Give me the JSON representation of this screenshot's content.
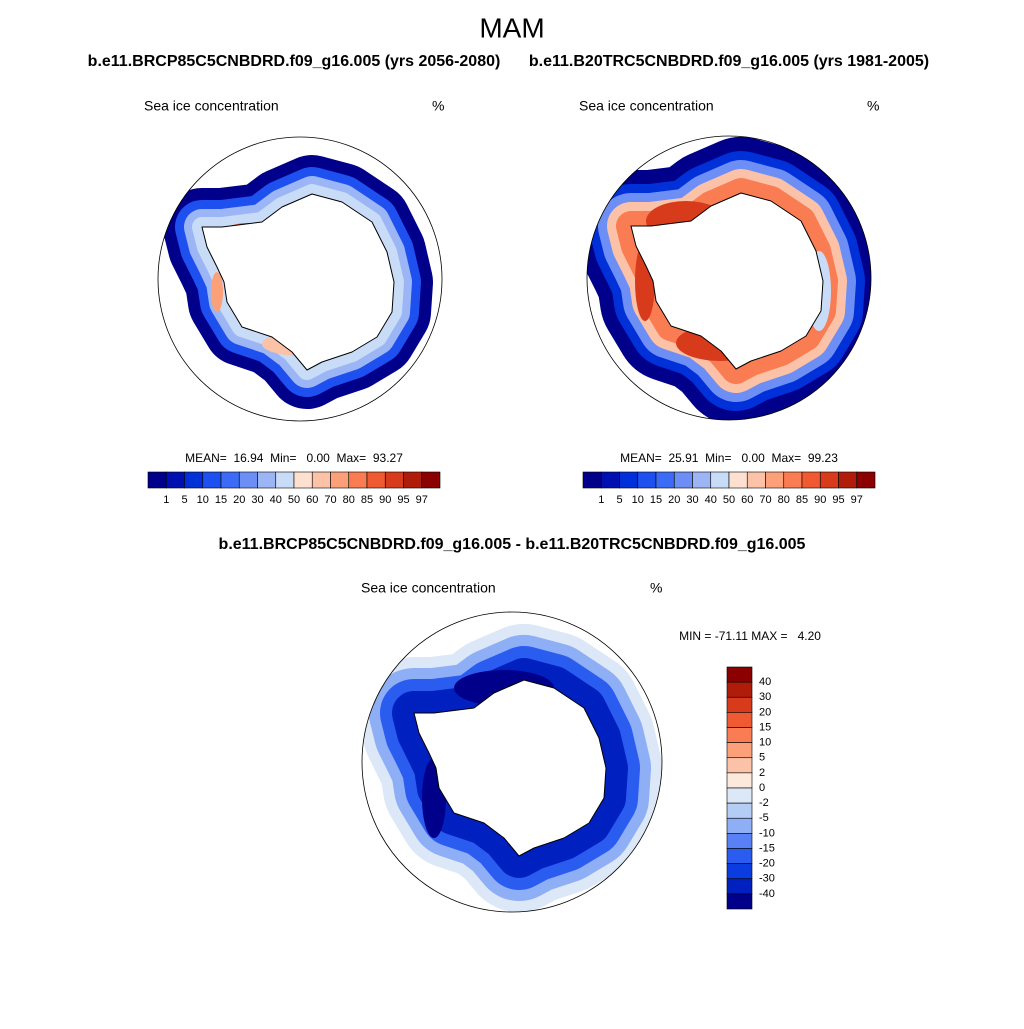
{
  "title": "MAM",
  "panels": [
    {
      "subtitle": "b.e11.BRCP85C5CNBDRD.f09_g16.005 (yrs 2056-2080)",
      "label_left": "Sea ice concentration",
      "label_right": "%",
      "stats": "MEAN=  16.94  Min=   0.00  Max=  93.27"
    },
    {
      "subtitle": "b.e11.B20TRC5CNBDRD.f09_g16.005 (yrs 1981-2005)",
      "label_left": "Sea ice concentration",
      "label_right": "%",
      "stats": "MEAN=  25.91  Min=   0.00  Max=  99.23"
    },
    {
      "subtitle": "b.e11.BRCP85C5CNBDRD.f09_g16.005 - b.e11.B20TRC5CNBDRD.f09_g16.005",
      "label_left": "Sea ice concentration",
      "label_right": "%",
      "stats": "MIN = -71.11 MAX =   4.20"
    }
  ],
  "colorbars": [
    {
      "colors": [
        "#00008b",
        "#0010b0",
        "#0030d8",
        "#1e50f0",
        "#3c6cf5",
        "#6c8ef5",
        "#9cb6f5",
        "#c8dcf8",
        "#fde0d0",
        "#fcc2a8",
        "#fca07a",
        "#fa7c52",
        "#f05a32",
        "#d83a1c",
        "#b01c0a",
        "#8b0000"
      ],
      "labels": [
        1,
        5,
        10,
        15,
        20,
        30,
        40,
        50,
        60,
        70,
        80,
        85,
        90,
        95,
        97
      ]
    },
    {
      "colors": [
        "#8b0000",
        "#b01c0a",
        "#d83a1c",
        "#f05a32",
        "#fa7c52",
        "#fca07a",
        "#fcc2a8",
        "#fde8dc",
        "#dce8f8",
        "#b4cdf5",
        "#8eaef5",
        "#5a80f5",
        "#2a5cf0",
        "#0a3ce0",
        "#0020c0",
        "#00008b"
      ],
      "labels": [
        40,
        30,
        20,
        15,
        10,
        5,
        2,
        0,
        -2,
        -5,
        -10,
        -15,
        -20,
        -30,
        -40
      ]
    }
  ]
}
